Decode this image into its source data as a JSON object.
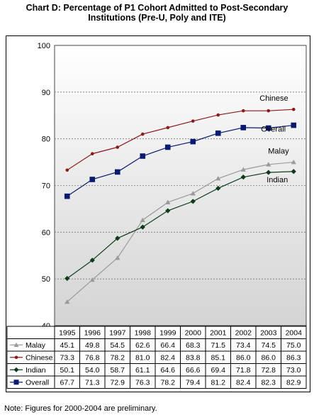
{
  "title_line1": "Chart D: Percentage of P1 Cohort Admitted to Post-Secondary",
  "title_line2": "Institutions (Pre-U, Poly and ITE)",
  "note": "Note: Figures for 2000-2004 are preliminary.",
  "chart_data": {
    "type": "line",
    "categories": [
      "1995",
      "1996",
      "1997",
      "1998",
      "1999",
      "2000",
      "2001",
      "2002",
      "2003",
      "2004"
    ],
    "ylim": [
      40,
      100
    ],
    "yticks": [
      "40",
      "50",
      "60",
      "70",
      "80",
      "90",
      "100"
    ],
    "grid": true,
    "series": [
      {
        "name": "Malay",
        "color": "#9a9a9a",
        "marker": "triangle",
        "values": [
          45.1,
          49.8,
          54.5,
          62.6,
          66.4,
          68.3,
          71.5,
          73.4,
          74.5,
          75.0
        ],
        "labels": [
          "45.1",
          "49.8",
          "54.5",
          "62.6",
          "66.4",
          "68.3",
          "71.5",
          "73.4",
          "74.5",
          "75.0"
        ]
      },
      {
        "name": "Chinese",
        "color": "#8b1a1a",
        "marker": "circle",
        "values": [
          73.3,
          76.8,
          78.2,
          81.0,
          82.4,
          83.8,
          85.1,
          86.0,
          86.0,
          86.3
        ],
        "labels": [
          "73.3",
          "76.8",
          "78.2",
          "81.0",
          "82.4",
          "83.8",
          "85.1",
          "86.0",
          "86.0",
          "86.3"
        ]
      },
      {
        "name": "Indian",
        "color": "#0d3b1a",
        "marker": "diamond",
        "values": [
          50.1,
          54.0,
          58.7,
          61.1,
          64.6,
          66.6,
          69.4,
          71.8,
          72.8,
          73.0
        ],
        "labels": [
          "50.1",
          "54.0",
          "58.7",
          "61.1",
          "64.6",
          "66.6",
          "69.4",
          "71.8",
          "72.8",
          "73.0"
        ]
      },
      {
        "name": "Overall",
        "color": "#0a1a6e",
        "marker": "square",
        "values": [
          67.7,
          71.3,
          72.9,
          76.3,
          78.2,
          79.4,
          81.2,
          82.4,
          82.3,
          82.9
        ],
        "labels": [
          "67.7",
          "71.3",
          "72.9",
          "76.3",
          "78.2",
          "79.4",
          "81.2",
          "82.4",
          "82.3",
          "82.9"
        ]
      }
    ]
  }
}
